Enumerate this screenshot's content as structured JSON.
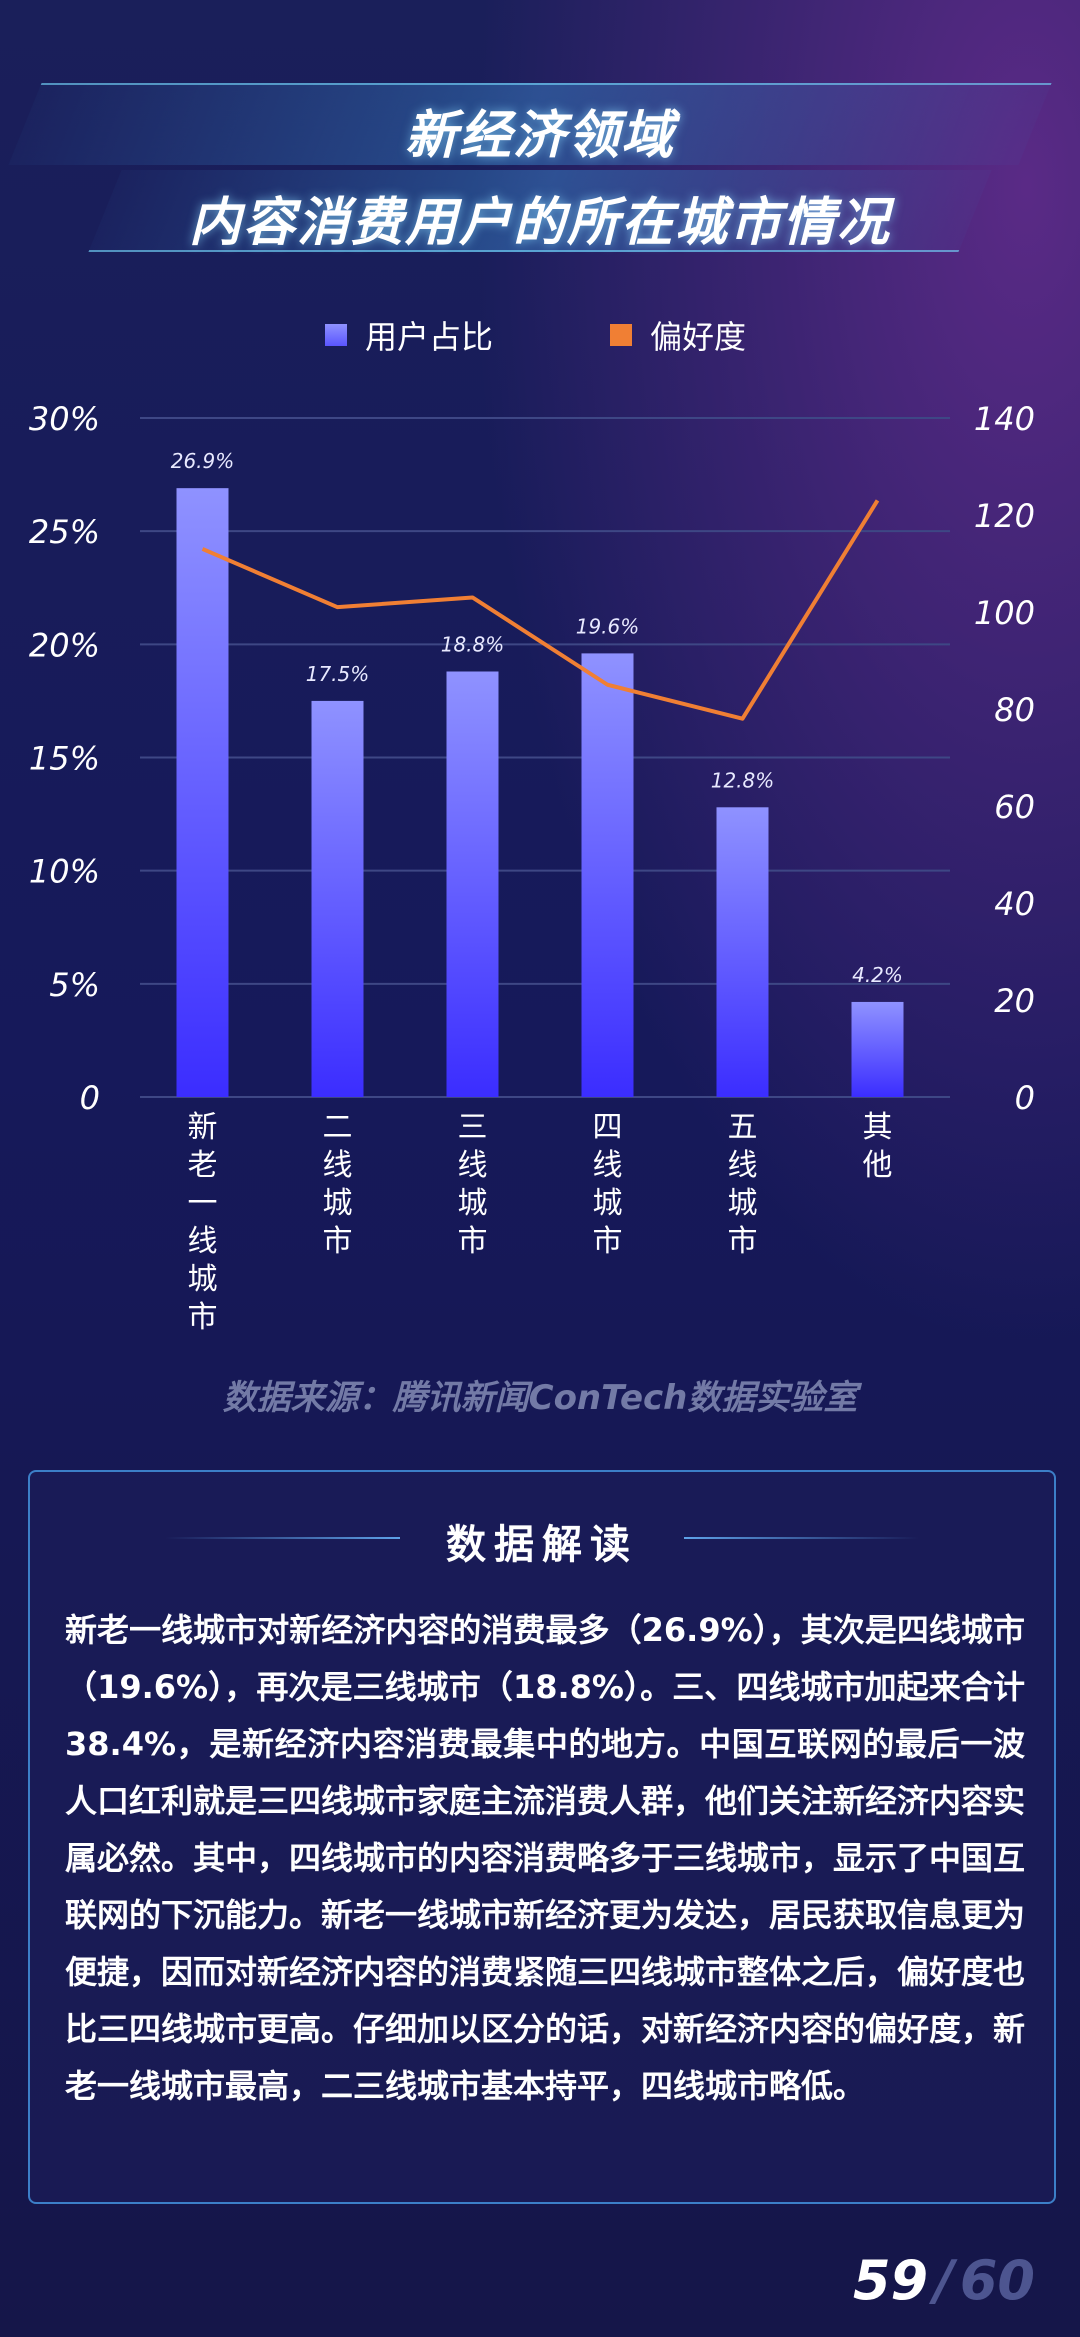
{
  "title": {
    "line1": "新经济领域",
    "line2": "内容消费用户的所在城市情况"
  },
  "legend": {
    "bar_label": "用户占比",
    "line_label": "偏好度"
  },
  "colors": {
    "bar_top": "#8f92ff",
    "bar_bottom": "#3b2dff",
    "line": "#f07f34",
    "grid": "#3e4785",
    "axis_text": "#ffffff"
  },
  "chart_data": {
    "type": "bar",
    "categories": [
      "新老一线城市",
      "二线城市",
      "三线城市",
      "四线城市",
      "五线城市",
      "其他"
    ],
    "series": [
      {
        "name": "用户占比",
        "type": "bar",
        "axis": "left",
        "values": [
          26.9,
          17.5,
          18.8,
          19.6,
          12.8,
          4.2
        ],
        "labels": [
          "26.9%",
          "17.5%",
          "18.8%",
          "19.6%",
          "12.8%",
          "4.2%"
        ]
      },
      {
        "name": "偏好度",
        "type": "line",
        "axis": "right",
        "values": [
          113,
          101,
          103,
          85,
          78,
          123
        ]
      }
    ],
    "y_left": {
      "ylim": [
        0,
        30
      ],
      "ticks": [
        "0",
        "5%",
        "10%",
        "15%",
        "20%",
        "25%",
        "30%"
      ]
    },
    "y_right": {
      "ylim": [
        0,
        140
      ],
      "ticks": [
        "0",
        "20",
        "40",
        "60",
        "80",
        "100",
        "120",
        "140"
      ]
    },
    "grid": true,
    "legend_position": "top"
  },
  "source_text": "数据来源：腾讯新闻ConTech数据实验室",
  "panel": {
    "title": "数据解读",
    "body": "新老一线城市对新经济内容的消费最多（26.9%），其次是四线城市（19.6%），再次是三线城市（18.8%）。三、四线城市加起来合计38.4%，是新经济内容消费最集中的地方。中国互联网的最后一波人口红利就是三四线城市家庭主流消费人群，他们关注新经济内容实属必然。其中，四线城市的内容消费略多于三线城市，显示了中国互联网的下沉能力。新老一线城市新经济更为发达，居民获取信息更为便捷，因而对新经济内容的消费紧随三四线城市整体之后，偏好度也比三四线城市更高。仔细加以区分的话，对新经济内容的偏好度，新老一线城市最高，二三线城市基本持平，四线城市略低。"
  },
  "page": {
    "current": "59",
    "separator": "/",
    "total": "60"
  }
}
